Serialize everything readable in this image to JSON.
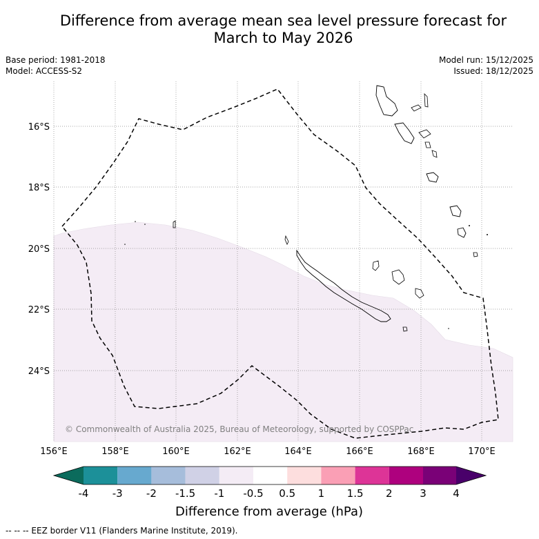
{
  "title_line1": "Difference from average mean sea level pressure forecast for",
  "title_line2": "March to May 2026",
  "meta": {
    "base_period": "Base period: 1981-2018",
    "model": "Model: ACCESS-S2",
    "model_run": "Model run: 15/12/2025",
    "issued": "Issued: 18/12/2025"
  },
  "map": {
    "lat_labels": [
      "16°S",
      "18°S",
      "20°S",
      "22°S",
      "24°S"
    ],
    "lon_labels": [
      "156°E",
      "158°E",
      "160°E",
      "162°E",
      "164°E",
      "166°E",
      "168°E",
      "170°E"
    ],
    "copyright": "© Commonwealth of Australia 2025, Bureau of Meteorology, supported by COSPPac",
    "anomaly_fill_color": "#f4ecf5"
  },
  "colorbar": {
    "title": "Difference from average (hPa)",
    "labels": [
      "-4",
      "-3",
      "-2",
      "-1.5",
      "-1",
      "-0.5",
      "0.5",
      "1",
      "1.5",
      "2",
      "3",
      "4"
    ],
    "colors": {
      "under": "#0b6b5c",
      "bins": [
        "#1c9099",
        "#67a9cf",
        "#a6bddb",
        "#d0d1e6",
        "#f4ecf5",
        "#ffffff",
        "#fddede",
        "#fa9fb5",
        "#dd3497",
        "#ae017e",
        "#7a0177"
      ],
      "over": "#49006a"
    }
  },
  "footnote": "--  --  -- EEZ border V11 (Flanders Marine Institute, 2019)."
}
